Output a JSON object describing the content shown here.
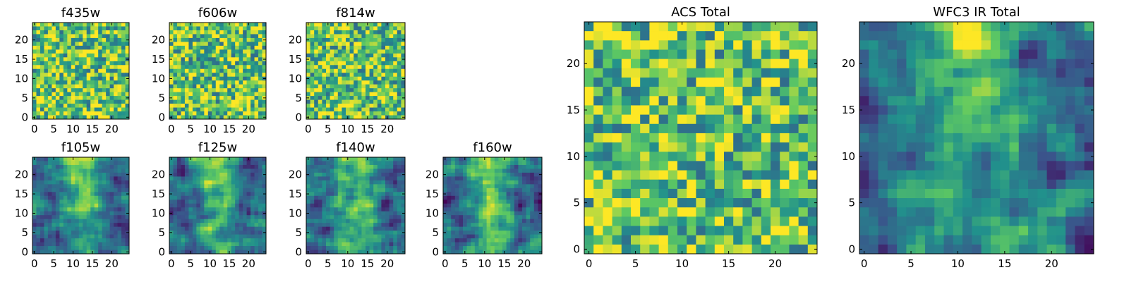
{
  "chart_data": [
    {
      "type": "heatmap",
      "title": "f435w",
      "texture": "noise",
      "grid": false,
      "xlim": [
        0,
        25
      ],
      "ylim": [
        0,
        25
      ],
      "xticks": [
        "0",
        "5",
        "10",
        "15",
        "20"
      ],
      "yticks": [
        "0",
        "5",
        "10",
        "15",
        "20"
      ]
    },
    {
      "type": "heatmap",
      "title": "f606w",
      "texture": "noise",
      "grid": false,
      "xlim": [
        0,
        25
      ],
      "ylim": [
        0,
        25
      ],
      "xticks": [
        "0",
        "5",
        "10",
        "15",
        "20"
      ],
      "yticks": [
        "0",
        "5",
        "10",
        "15",
        "20"
      ]
    },
    {
      "type": "heatmap",
      "title": "f814w",
      "texture": "noise",
      "grid": false,
      "xlim": [
        0,
        25
      ],
      "ylim": [
        0,
        25
      ],
      "xticks": [
        "0",
        "5",
        "10",
        "15",
        "20"
      ],
      "yticks": [
        "0",
        "5",
        "10",
        "15",
        "20"
      ]
    },
    {
      "type": "heatmap",
      "title": "f105w",
      "texture": "smooth",
      "grid": false,
      "xlim": [
        0,
        25
      ],
      "ylim": [
        0,
        25
      ],
      "xticks": [
        "0",
        "5",
        "10",
        "15",
        "20"
      ],
      "yticks": [
        "0",
        "5",
        "10",
        "15",
        "20"
      ]
    },
    {
      "type": "heatmap",
      "title": "f125w",
      "texture": "smooth",
      "grid": false,
      "xlim": [
        0,
        25
      ],
      "ylim": [
        0,
        25
      ],
      "xticks": [
        "0",
        "5",
        "10",
        "15",
        "20"
      ],
      "yticks": [
        "0",
        "5",
        "10",
        "15",
        "20"
      ]
    },
    {
      "type": "heatmap",
      "title": "f140w",
      "texture": "smooth",
      "grid": false,
      "xlim": [
        0,
        25
      ],
      "ylim": [
        0,
        25
      ],
      "xticks": [
        "0",
        "5",
        "10",
        "15",
        "20"
      ],
      "yticks": [
        "0",
        "5",
        "10",
        "15",
        "20"
      ]
    },
    {
      "type": "heatmap",
      "title": "f160w",
      "texture": "smooth",
      "grid": false,
      "xlim": [
        0,
        25
      ],
      "ylim": [
        0,
        25
      ],
      "xticks": [
        "0",
        "5",
        "10",
        "15",
        "20"
      ],
      "yticks": [
        "0",
        "5",
        "10",
        "15",
        "20"
      ]
    },
    {
      "type": "heatmap",
      "title": "ACS Total",
      "texture": "noise",
      "grid": false,
      "xlim": [
        0,
        25
      ],
      "ylim": [
        0,
        25
      ],
      "xticks": [
        "0",
        "5",
        "10",
        "15",
        "20"
      ],
      "yticks": [
        "0",
        "5",
        "10",
        "15",
        "20"
      ]
    },
    {
      "type": "heatmap",
      "title": "WFC3 IR Total",
      "texture": "smooth",
      "grid": false,
      "xlim": [
        0,
        25
      ],
      "ylim": [
        0,
        25
      ],
      "xticks": [
        "0",
        "5",
        "10",
        "15",
        "20"
      ],
      "yticks": [
        "0",
        "5",
        "10",
        "15",
        "20"
      ]
    }
  ],
  "colormap": [
    "#440154",
    "#3b528b",
    "#21918c",
    "#5ec962",
    "#fde725"
  ]
}
